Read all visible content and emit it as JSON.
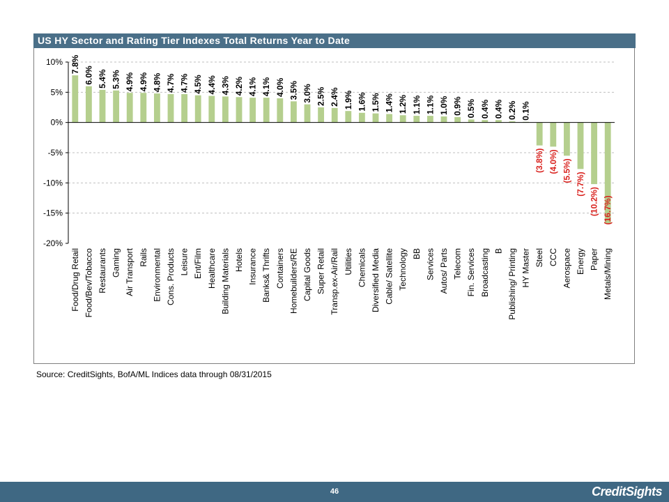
{
  "header": {
    "title": "US HY Sector and Rating Tier Indexes Total Returns Year to Date"
  },
  "source": "Source: CreditSights, BofA/ML Indices data through 08/31/2015",
  "footer": {
    "page_number": "46",
    "brand": "CreditSights"
  },
  "colors": {
    "bar": "#b5cf8e",
    "negative_label": "#d9231f",
    "header_bg": "#4a6f88",
    "footer_bg": "#3f6883"
  },
  "chart_data": {
    "type": "bar",
    "title": "US HY Sector and Rating Tier Indexes Total Returns Year to Date",
    "xlabel": "",
    "ylabel": "",
    "ylim": [
      -20,
      10
    ],
    "yticks": [
      10,
      5,
      0,
      -5,
      -10,
      -15,
      -20
    ],
    "ytick_labels": [
      "10%",
      "5%",
      "0%",
      "-5%",
      "-10%",
      "-15%",
      "-20%"
    ],
    "grid": "horizontal dashed",
    "categories": [
      "Food/Drug Retail",
      "Food/Bev/Tobacco",
      "Restaurants",
      "Gaming",
      "Air Transport",
      "Rails",
      "Environmental",
      "Cons. Products",
      "Leisure",
      "Ent/Film",
      "Healthcare",
      "Building Materials",
      "Hotels",
      "Insurance",
      "Banks& Thrifts",
      "Containers",
      "Homebuilders/RE",
      "Capital Goods",
      "Super Retail",
      "Transp.ex-Air/Rail",
      "Utilities",
      "Chemicals",
      "Diversified Media",
      "Cable/ Satellite",
      "Technology",
      "BB",
      "Services",
      "Autos/ Parts",
      "Telecom",
      "Fin. Services",
      "Broadcasting",
      "B",
      "Publishing/ Printing",
      "HY Master",
      "Steel",
      "CCC",
      "Aerospace",
      "Energy",
      "Paper",
      "Metals/Mining"
    ],
    "values": [
      7.8,
      6.0,
      5.4,
      5.3,
      4.9,
      4.9,
      4.8,
      4.7,
      4.7,
      4.5,
      4.4,
      4.3,
      4.2,
      4.1,
      4.1,
      4.0,
      3.5,
      3.0,
      2.5,
      2.4,
      1.9,
      1.6,
      1.5,
      1.4,
      1.2,
      1.1,
      1.1,
      1.0,
      0.9,
      0.5,
      0.4,
      0.4,
      0.2,
      0.1,
      -3.8,
      -4.0,
      -5.5,
      -7.7,
      -10.2,
      -16.7
    ],
    "data_labels": [
      "7.8%",
      "6.0%",
      "5.4%",
      "5.3%",
      "4.9%",
      "4.9%",
      "4.8%",
      "4.7%",
      "4.7%",
      "4.5%",
      "4.4%",
      "4.3%",
      "4.2%",
      "4.1%",
      "4.1%",
      "4.0%",
      "3.5%",
      "3.0%",
      "2.5%",
      "2.4%",
      "1.9%",
      "1.6%",
      "1.5%",
      "1.4%",
      "1.2%",
      "1.1%",
      "1.1%",
      "1.0%",
      "0.9%",
      "0.5%",
      "0.4%",
      "0.4%",
      "0.2%",
      "0.1%",
      "(3.8%)",
      "(4.0%)",
      "(5.5%)",
      "(7.7%)",
      "(10.2%)",
      "(16.7%)"
    ]
  }
}
